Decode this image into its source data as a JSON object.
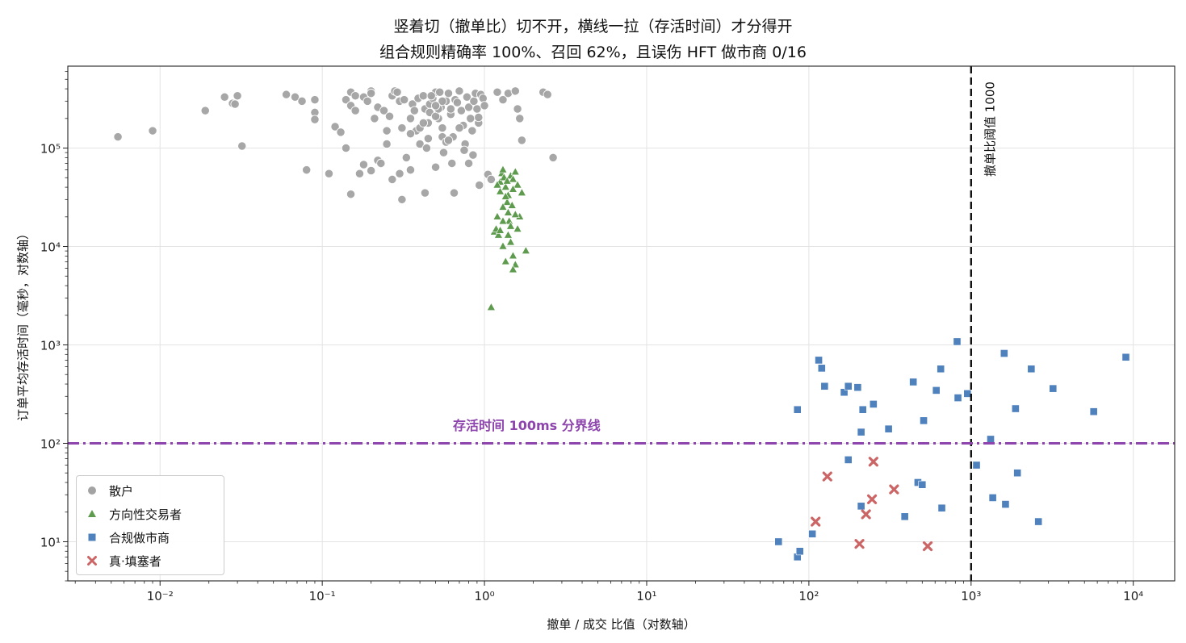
{
  "title_line1": "竖着切（撤单比）切不开，横线一拉（存活时间）才分得开",
  "title_line2": "组合规则精确率 100%、召回 62%，且误伤 HFT 做市商 0/16",
  "colors": {
    "retail": "#a3a3a3",
    "directional": "#5f9b4f",
    "market_maker": "#4f81bd",
    "spoofer": "#cc6666",
    "threshold_line": "#111111",
    "boundary_line": "#8e44ad"
  },
  "chart_data": {
    "type": "scatter",
    "title": "竖着切（撤单比）切不开，横线一拉（存活时间）才分得开\n组合规则精确率 100%、召回 62%，且误伤 HFT 做市商 0/16",
    "xlabel": "撤单 / 成交 比值（对数轴）",
    "ylabel": "订单平均存活时间（毫秒，对数轴）",
    "xscale": "log",
    "yscale": "log",
    "xlim": [
      0.0027,
      18000
    ],
    "ylim": [
      4.0,
      680000
    ],
    "grid": true,
    "legend_position": "lower-left",
    "x_ticks": [
      "10⁻²",
      "10⁻¹",
      "10⁰",
      "10¹",
      "10²",
      "10³",
      "10⁴"
    ],
    "y_ticks": [
      "10¹",
      "10²",
      "10³",
      "10⁴",
      "10⁵"
    ],
    "annotations": [
      {
        "text": "撤单比阈值 1000",
        "x": 1000,
        "line": "vertical",
        "style": "dashed"
      },
      {
        "text": "存活时间 100ms 分界线",
        "y": 100,
        "line": "horizontal",
        "style": "dash-dot"
      }
    ],
    "series": [
      {
        "name": "散户",
        "marker": "circle",
        "color": "#a3a3a3",
        "points": [
          [
            0.0055,
            130000
          ],
          [
            0.009,
            150000
          ],
          [
            0.019,
            240000
          ],
          [
            0.025,
            330000
          ],
          [
            0.028,
            285000
          ],
          [
            0.03,
            340000
          ],
          [
            0.029,
            280000
          ],
          [
            0.032,
            105000
          ],
          [
            0.06,
            350000
          ],
          [
            0.068,
            330000
          ],
          [
            0.075,
            300000
          ],
          [
            0.08,
            60000
          ],
          [
            0.09,
            310000
          ],
          [
            0.09,
            230000
          ],
          [
            0.09,
            195000
          ],
          [
            0.11,
            55000
          ],
          [
            0.12,
            165000
          ],
          [
            0.13,
            145000
          ],
          [
            0.14,
            310000
          ],
          [
            0.14,
            100000
          ],
          [
            0.15,
            370000
          ],
          [
            0.15,
            270000
          ],
          [
            0.16,
            240000
          ],
          [
            0.16,
            340000
          ],
          [
            0.17,
            55000
          ],
          [
            0.18,
            330000
          ],
          [
            0.19,
            300000
          ],
          [
            0.2,
            380000
          ],
          [
            0.2,
            360000
          ],
          [
            0.21,
            200000
          ],
          [
            0.22,
            260000
          ],
          [
            0.22,
            75000
          ],
          [
            0.23,
            70000
          ],
          [
            0.24,
            240000
          ],
          [
            0.25,
            110000
          ],
          [
            0.26,
            210000
          ],
          [
            0.27,
            340000
          ],
          [
            0.28,
            380000
          ],
          [
            0.29,
            370000
          ],
          [
            0.3,
            300000
          ],
          [
            0.31,
            160000
          ],
          [
            0.32,
            310000
          ],
          [
            0.33,
            80000
          ],
          [
            0.35,
            200000
          ],
          [
            0.35,
            60000
          ],
          [
            0.36,
            280000
          ],
          [
            0.37,
            240000
          ],
          [
            0.38,
            150000
          ],
          [
            0.39,
            320000
          ],
          [
            0.4,
            110000
          ],
          [
            0.42,
            340000
          ],
          [
            0.43,
            250000
          ],
          [
            0.44,
            100000
          ],
          [
            0.45,
            180000
          ],
          [
            0.46,
            280000
          ],
          [
            0.48,
            320000
          ],
          [
            0.5,
            370000
          ],
          [
            0.52,
            200000
          ],
          [
            0.54,
            260000
          ],
          [
            0.55,
            160000
          ],
          [
            0.56,
            90000
          ],
          [
            0.58,
            300000
          ],
          [
            0.6,
            360000
          ],
          [
            0.62,
            220000
          ],
          [
            0.64,
            130000
          ],
          [
            0.66,
            310000
          ],
          [
            0.68,
            290000
          ],
          [
            0.7,
            380000
          ],
          [
            0.72,
            240000
          ],
          [
            0.74,
            170000
          ],
          [
            0.76,
            110000
          ],
          [
            0.78,
            330000
          ],
          [
            0.8,
            260000
          ],
          [
            0.82,
            200000
          ],
          [
            0.84,
            150000
          ],
          [
            0.86,
            300000
          ],
          [
            0.88,
            360000
          ],
          [
            0.9,
            250000
          ],
          [
            0.92,
            180000
          ],
          [
            0.95,
            350000
          ],
          [
            0.98,
            320000
          ],
          [
            1.0,
            270000
          ],
          [
            1.05,
            54000
          ],
          [
            1.1,
            48000
          ],
          [
            0.93,
            42000
          ],
          [
            0.65,
            35000
          ],
          [
            0.43,
            35000
          ],
          [
            0.31,
            30000
          ],
          [
            0.27,
            48000
          ],
          [
            0.5,
            64000
          ],
          [
            0.55,
            130000
          ],
          [
            0.62,
            250000
          ],
          [
            0.7,
            160000
          ],
          [
            0.75,
            95000
          ],
          [
            0.8,
            70000
          ],
          [
            1.2,
            370000
          ],
          [
            1.3,
            310000
          ],
          [
            1.4,
            360000
          ],
          [
            1.55,
            380000
          ],
          [
            1.6,
            250000
          ],
          [
            1.65,
            200000
          ],
          [
            1.7,
            120000
          ],
          [
            2.3,
            370000
          ],
          [
            2.45,
            350000
          ],
          [
            2.65,
            80000
          ],
          [
            0.2,
            59000
          ],
          [
            0.18,
            68000
          ],
          [
            0.15,
            34000
          ],
          [
            0.46,
            230000
          ],
          [
            0.5,
            210000
          ],
          [
            0.52,
            250000
          ],
          [
            0.55,
            300000
          ],
          [
            0.58,
            115000
          ],
          [
            0.6,
            120000
          ],
          [
            0.63,
            70000
          ],
          [
            0.35,
            140000
          ],
          [
            0.4,
            160000
          ],
          [
            0.42,
            180000
          ],
          [
            0.47,
            340000
          ],
          [
            0.5,
            270000
          ],
          [
            0.53,
            370000
          ],
          [
            0.45,
            125000
          ],
          [
            0.3,
            55000
          ],
          [
            0.25,
            150000
          ],
          [
            0.85,
            85000
          ],
          [
            0.92,
            205000
          ]
        ]
      },
      {
        "name": "方向性交易者",
        "marker": "triangle",
        "color": "#5f9b4f",
        "points": [
          [
            1.1,
            2400
          ],
          [
            1.15,
            14000
          ],
          [
            1.18,
            15000
          ],
          [
            1.2,
            20000
          ],
          [
            1.22,
            13000
          ],
          [
            1.25,
            45000
          ],
          [
            1.28,
            55000
          ],
          [
            1.3,
            60000
          ],
          [
            1.32,
            50000
          ],
          [
            1.35,
            40000
          ],
          [
            1.38,
            28000
          ],
          [
            1.4,
            22000
          ],
          [
            1.42,
            18000
          ],
          [
            1.45,
            11000
          ],
          [
            1.5,
            8000
          ],
          [
            1.55,
            6500
          ],
          [
            1.6,
            15000
          ],
          [
            1.65,
            20000
          ],
          [
            1.7,
            35000
          ],
          [
            1.8,
            9000
          ],
          [
            1.3,
            10000
          ],
          [
            1.35,
            7000
          ],
          [
            1.4,
            33000
          ],
          [
            1.45,
            52000
          ],
          [
            1.5,
            48000
          ],
          [
            1.55,
            57000
          ],
          [
            1.6,
            42000
          ],
          [
            1.25,
            36000
          ],
          [
            1.3,
            25000
          ],
          [
            1.4,
            13000
          ],
          [
            1.45,
            16000
          ],
          [
            1.5,
            38000
          ],
          [
            1.25,
            14500
          ],
          [
            1.35,
            32000
          ],
          [
            1.5,
            5800
          ],
          [
            1.2,
            42000
          ],
          [
            1.38,
            46000
          ],
          [
            1.48,
            26000
          ],
          [
            1.55,
            21000
          ],
          [
            1.3,
            18000
          ]
        ]
      },
      {
        "name": "合规做市商",
        "marker": "square",
        "color": "#4f81bd",
        "points": [
          [
            65,
            10
          ],
          [
            85,
            7
          ],
          [
            88,
            8
          ],
          [
            85,
            220
          ],
          [
            105,
            12
          ],
          [
            115,
            700
          ],
          [
            120,
            580
          ],
          [
            125,
            380
          ],
          [
            165,
            330
          ],
          [
            175,
            380
          ],
          [
            175,
            68
          ],
          [
            200,
            370
          ],
          [
            210,
            23
          ],
          [
            210,
            130
          ],
          [
            215,
            220
          ],
          [
            250,
            250
          ],
          [
            310,
            140
          ],
          [
            390,
            18
          ],
          [
            440,
            420
          ],
          [
            470,
            40
          ],
          [
            500,
            38
          ],
          [
            510,
            170
          ],
          [
            610,
            345
          ],
          [
            650,
            570
          ],
          [
            660,
            22
          ],
          [
            820,
            1080
          ],
          [
            830,
            290
          ],
          [
            950,
            320
          ],
          [
            1080,
            60
          ],
          [
            1320,
            110
          ],
          [
            1360,
            28
          ],
          [
            1600,
            820
          ],
          [
            1630,
            24
          ],
          [
            1880,
            225
          ],
          [
            1930,
            50
          ],
          [
            2350,
            570
          ],
          [
            2600,
            16
          ],
          [
            3200,
            360
          ],
          [
            5700,
            210
          ],
          [
            9000,
            750
          ]
        ]
      },
      {
        "name": "真·填塞者",
        "marker": "x",
        "color": "#cc6666",
        "points": [
          [
            110,
            16
          ],
          [
            130,
            46
          ],
          [
            205,
            9.5
          ],
          [
            225,
            19
          ],
          [
            245,
            27
          ],
          [
            250,
            65
          ],
          [
            335,
            34
          ],
          [
            540,
            9
          ]
        ]
      }
    ]
  }
}
